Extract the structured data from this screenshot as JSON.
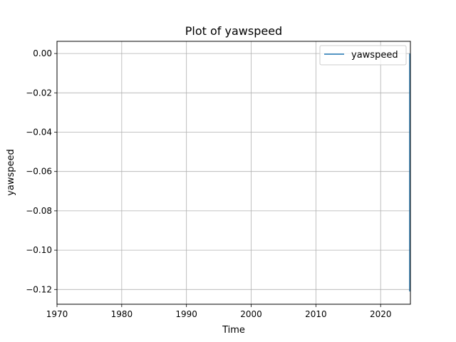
{
  "chart_data": {
    "type": "line",
    "title": "Plot of yawspeed",
    "xlabel": "Time",
    "ylabel": "yawspeed",
    "xlim": [
      1970,
      2024.6
    ],
    "ylim": [
      -0.1275,
      0.0062
    ],
    "xticks": [
      1970,
      1980,
      1990,
      2000,
      2010,
      2020
    ],
    "xtick_labels": [
      "1970",
      "1980",
      "1990",
      "2000",
      "2010",
      "2020"
    ],
    "yticks": [
      0.0,
      -0.02,
      -0.04,
      -0.06,
      -0.08,
      -0.1,
      -0.12
    ],
    "ytick_labels": [
      "0.00",
      "−0.02",
      "−0.04",
      "−0.06",
      "−0.08",
      "−0.10",
      "−0.12"
    ],
    "grid": true,
    "legend_position": "top-right",
    "series": [
      {
        "name": "yawspeed",
        "color": "#1f77b4",
        "x": [
          2024.5,
          2024.5,
          2024.5
        ],
        "y": [
          0.0,
          -0.06,
          -0.121
        ]
      }
    ]
  }
}
